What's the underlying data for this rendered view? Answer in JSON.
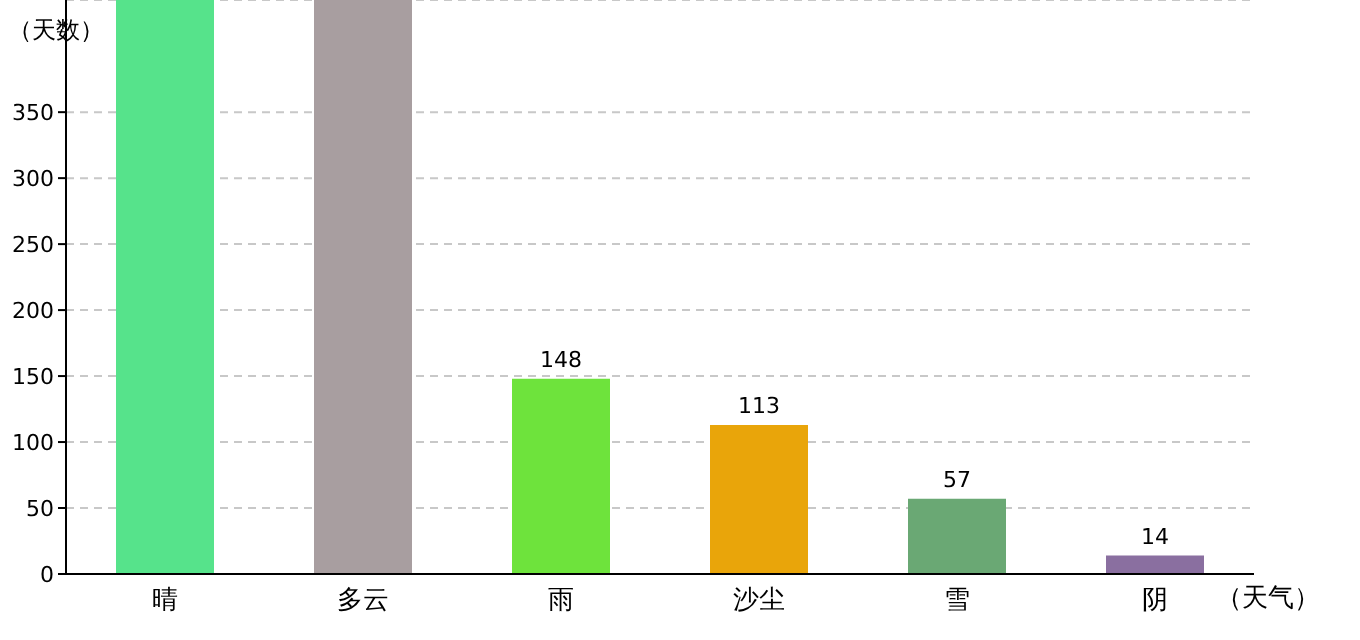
{
  "chart_data": {
    "type": "bar",
    "xlabel": "（天气）",
    "ylabel": "（天数）",
    "categories": [
      "晴",
      "多云",
      "雨",
      "沙尘",
      "雪",
      "阴"
    ],
    "values": [
      435,
      435,
      148,
      113,
      57,
      14
    ],
    "value_labels": [
      null,
      null,
      "148",
      "113",
      "57",
      "14"
    ],
    "colors": [
      "#56e38b",
      "#a89ea0",
      "#6ee33c",
      "#e9a50a",
      "#6aa874",
      "#8a6fa0"
    ],
    "ylim": [
      0,
      435
    ],
    "yticks": [
      0,
      50,
      100,
      150,
      200,
      250,
      300,
      350
    ],
    "grid": "y"
  }
}
